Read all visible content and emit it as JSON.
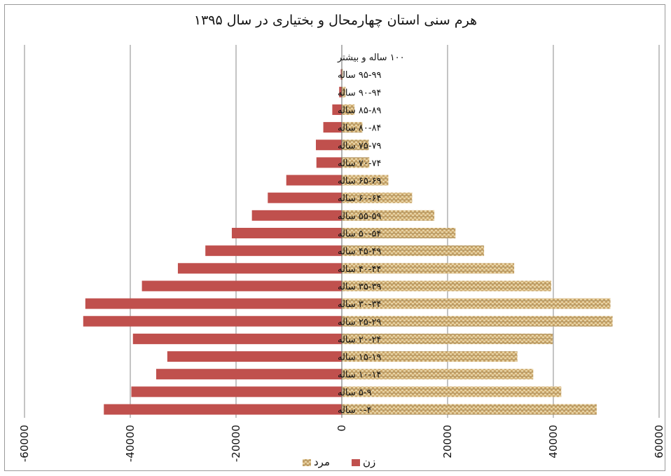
{
  "chart_data": {
    "type": "bar",
    "orientation": "horizontal",
    "title": "هرم سنی استان چهارمحال و بختیاری در سال ۱۳۹۵",
    "categories": [
      "۰-۴ ساله",
      "۵-۹ ساله",
      "۱۰-۱۴ ساله",
      "۱۵-۱۹ ساله",
      "۲۰-۲۴ ساله",
      "۲۵-۲۹ ساله",
      "۳۰-۳۴ ساله",
      "۳۵-۳۹ ساله",
      "۴۰-۴۴ ساله",
      "۴۵-۴۹ ساله",
      "۵۰-۵۴ ساله",
      "۵۵-۵۹ ساله",
      "۶۰-۶۴ ساله",
      "۶۵-۶۹ ساله",
      "۷۰-۷۴ ساله",
      "۷۵-۷۹ ساله",
      "۸۰-۸۴ ساله",
      "۸۵-۸۹ ساله",
      "۹۰-۹۴ ساله",
      "۹۵-۹۹ ساله",
      "۱۰۰ ساله و بیشتر"
    ],
    "series": [
      {
        "name": "زن",
        "color": "#c0504d",
        "pattern": "solid",
        "values": [
          -45000,
          -39800,
          -35100,
          -33000,
          -39500,
          -48900,
          -48500,
          -37800,
          -31000,
          -25800,
          -20800,
          -17000,
          -14000,
          -10500,
          -4800,
          -4900,
          -3500,
          -1800,
          -500,
          -200,
          0
        ]
      },
      {
        "name": "مرد",
        "color": "#c9a56a",
        "pattern": "woven",
        "values": [
          48200,
          41500,
          36200,
          33200,
          39900,
          51200,
          50800,
          39600,
          32600,
          26900,
          21500,
          17500,
          13300,
          8800,
          5200,
          5100,
          3900,
          2400,
          700,
          200,
          0
        ]
      }
    ],
    "xlim": [
      -60000,
      60000
    ],
    "xticks": [
      "-60000",
      "-40000",
      "-20000",
      "0",
      "20000",
      "40000",
      "60000"
    ],
    "grid": true,
    "legend": "bottom"
  }
}
